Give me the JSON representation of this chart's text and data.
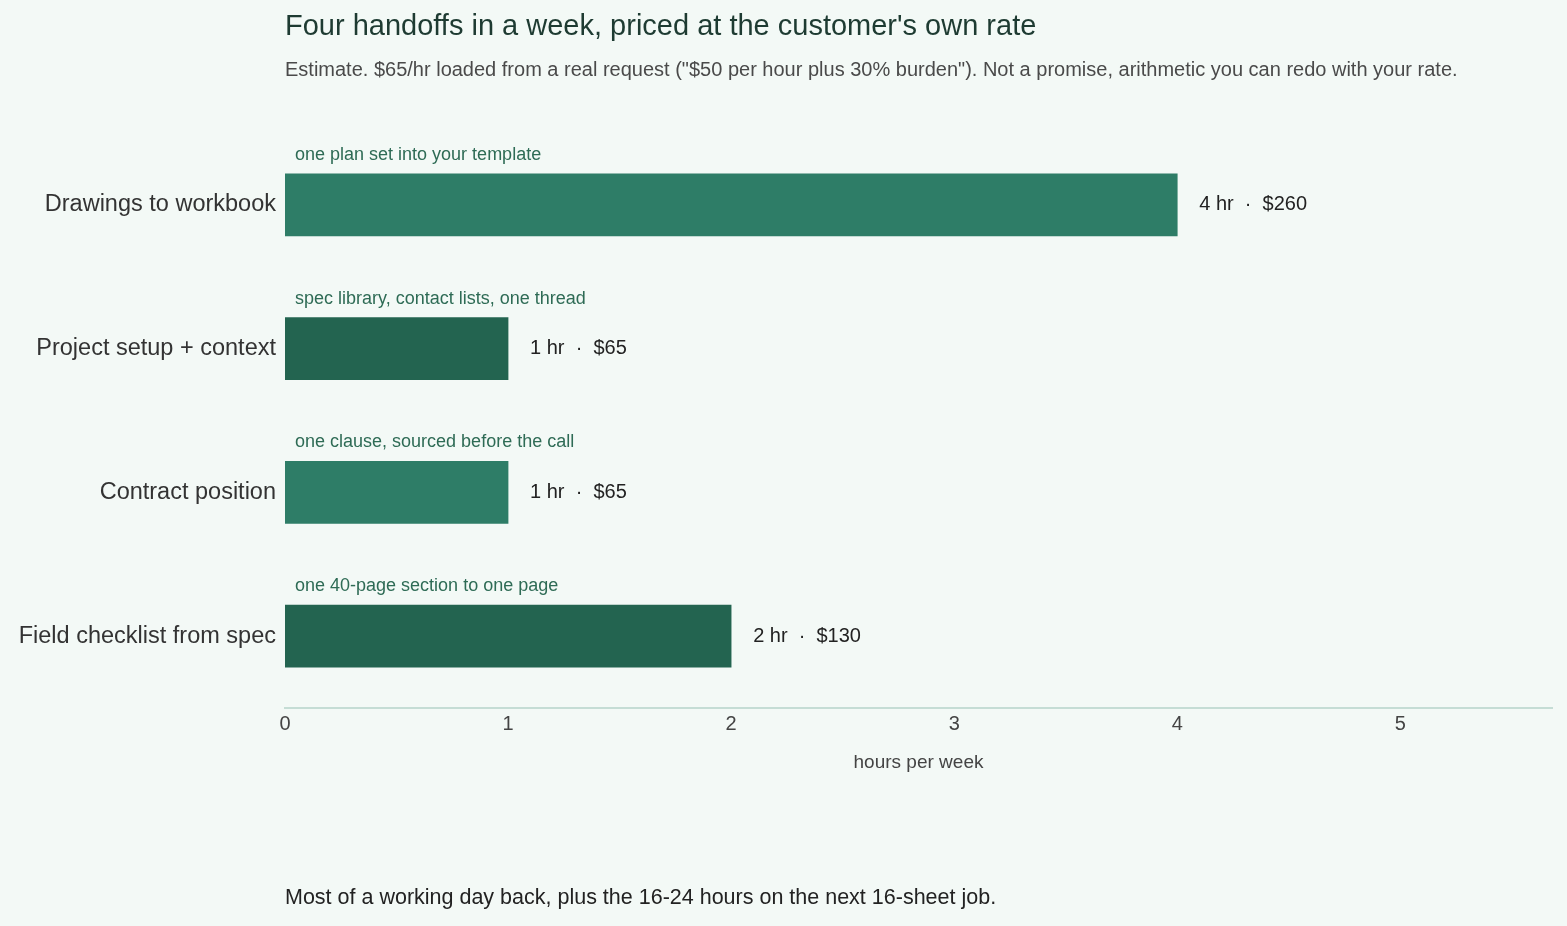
{
  "chart_data": {
    "type": "bar",
    "orientation": "horizontal",
    "title": "Four handoffs in a week, priced at the customer's own rate",
    "subtitle": "Estimate. $65/hr loaded from a real request (\"$50 per hour plus 30% burden\"). Not a promise, arithmetic you can redo with your rate.",
    "xlabel": "hours per week",
    "categories": [
      "Drawings to workbook",
      "Project setup + context",
      "Contract position",
      "Field checklist from spec"
    ],
    "values": [
      4,
      1,
      1,
      2
    ],
    "colors": [
      "#2e7d67",
      "#236450",
      "#2e7d67",
      "#236450"
    ],
    "value_labels": [
      "4 hr  ·  $260",
      "1 hr  ·  $65",
      "1 hr  ·  $65",
      "2 hr  ·  $130"
    ],
    "xlim": [
      0,
      5.68
    ],
    "xticks": [
      0,
      1,
      2,
      3,
      4,
      5
    ],
    "grid": false,
    "legend": false,
    "annotations": [
      "one plan set into your template",
      "spec library, contact lists, one thread",
      "one clause, sourced before the call",
      "one 40-page section to one page",
      "Most of a working day back, plus the 16-24 hours on the next 16-sheet job."
    ]
  }
}
